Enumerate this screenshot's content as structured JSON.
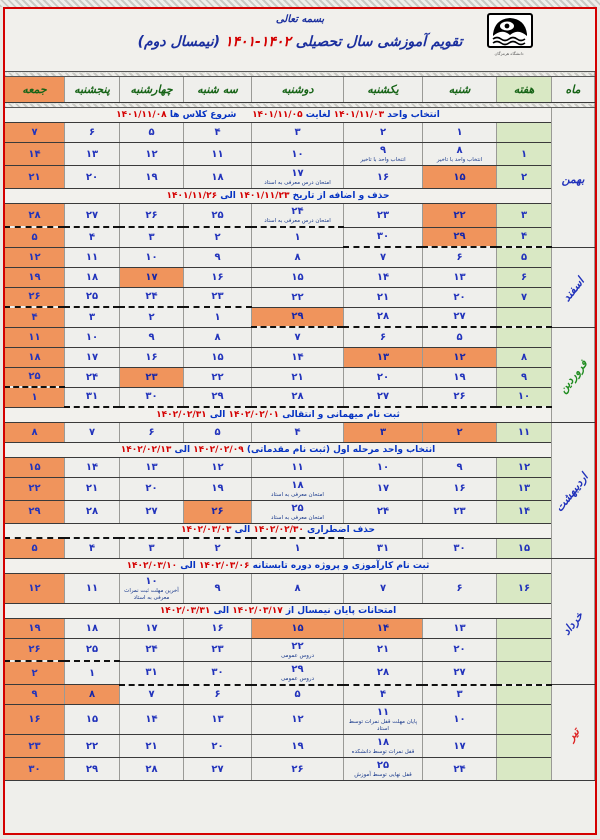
{
  "page": {
    "bismillah": "بسمه تعالی",
    "title": {
      "prefix": "تقویم آموزشی سال تحصیلی ",
      "years": "۱۴۰۲-۱۴۰۱",
      "suffix": " (نیمسال دوم)"
    },
    "logo_caption": "دانشگاه هرمزگان"
  },
  "colors": {
    "accent_red": "#d40000",
    "highlight_orange": "#f0945c",
    "week_green": "#d9e8c4",
    "date_blue": "#2233bb",
    "day_header_green": "#176417"
  },
  "calendar": {
    "column_headers": [
      "ماه",
      "هفته",
      "شنبه",
      "یکشنبه",
      "دوشنبه",
      "سه شنبه",
      "چهارشنبه",
      "پنجشنبه",
      "جمعه"
    ],
    "months": [
      {
        "name": "بهمن",
        "color": "#2233bb",
        "rotate": false
      },
      {
        "name": "اسفند",
        "color": "#2233bb",
        "rotate": true
      },
      {
        "name": "فروردین",
        "color": "#1f8c1f",
        "rotate": true
      },
      {
        "name": "اردیبهشت",
        "color": "#2233bb",
        "rotate": true
      },
      {
        "name": "خرداد",
        "color": "#2233bb",
        "rotate": true
      },
      {
        "name": "تیر",
        "color": "#dd2222",
        "rotate": true
      }
    ],
    "rows": [
      {
        "type": "note",
        "month": 0,
        "span": 7,
        "parts": [
          {
            "text": "انتخاب واحد ",
            "red": false
          },
          {
            "text": "۱۴۰۱/۱۱/۰۳",
            "red": true
          },
          {
            "text": " لغایت ",
            "red": false
          },
          {
            "text": "۱۴۰۱/۱۱/۰۵",
            "red": true
          },
          {
            "text": "     شروع کلاس ها ",
            "red": false
          },
          {
            "text": "۱۴۰۱/۱۱/۰۸",
            "red": true
          }
        ]
      },
      {
        "type": "days",
        "week": "",
        "cells": [
          {
            "d": "۱"
          },
          {
            "d": "۲"
          },
          {
            "d": "۳"
          },
          {
            "d": "۴"
          },
          {
            "d": "۵"
          },
          {
            "d": "۶"
          },
          {
            "d": "۷"
          }
        ]
      },
      {
        "type": "days",
        "week": "۱",
        "cells": [
          {
            "d": "۸",
            "sub": "انتخاب واحد با تاخیر"
          },
          {
            "d": "۹",
            "sub": "انتخاب واحد با تاخیر"
          },
          {
            "d": "۱۰"
          },
          {
            "d": "۱۱"
          },
          {
            "d": "۱۲"
          },
          {
            "d": "۱۳"
          },
          {
            "d": "۱۴"
          }
        ]
      },
      {
        "type": "days",
        "week": "۲",
        "cells": [
          {
            "d": "۱۵",
            "hl": true
          },
          {
            "d": "۱۶"
          },
          {
            "d": "۱۷",
            "sub": "امتحان درس معرفی به استاد"
          },
          {
            "d": "۱۸"
          },
          {
            "d": "۱۹"
          },
          {
            "d": "۲۰"
          },
          {
            "d": "۲۱"
          }
        ]
      },
      {
        "type": "note",
        "parts": [
          {
            "text": "حذف و اضافه از تاریخ ",
            "red": false
          },
          {
            "text": "۱۴۰۱/۱۱/۲۳",
            "red": true
          },
          {
            "text": " الی ",
            "red": false
          },
          {
            "text": "۱۴۰۱/۱۱/۲۶",
            "red": true
          }
        ]
      },
      {
        "type": "days",
        "week": "۳",
        "cells": [
          {
            "d": "۲۲",
            "hl": true
          },
          {
            "d": "۲۳"
          },
          {
            "d": "۲۴",
            "sub": "امتحان درس معرفی به استاد"
          },
          {
            "d": "۲۵"
          },
          {
            "d": "۲۶"
          },
          {
            "d": "۲۷"
          },
          {
            "d": "۲۸"
          }
        ]
      },
      {
        "type": "days",
        "week": "۴",
        "week_db": true,
        "cells": [
          {
            "d": "۲۹",
            "hl": true,
            "db": true
          },
          {
            "d": "۳۰",
            "db": true
          },
          {
            "d": "۱",
            "dt": true
          },
          {
            "d": "۲",
            "dt": true
          },
          {
            "d": "۳",
            "dt": true
          },
          {
            "d": "۴",
            "dt": true
          },
          {
            "d": "۵",
            "dt": true
          }
        ]
      },
      {
        "type": "days",
        "month": 1,
        "span": 4,
        "week": "۵",
        "cells": [
          {
            "d": "۶"
          },
          {
            "d": "۷"
          },
          {
            "d": "۸"
          },
          {
            "d": "۹"
          },
          {
            "d": "۱۰"
          },
          {
            "d": "۱۱"
          },
          {
            "d": "۱۲"
          }
        ]
      },
      {
        "type": "days",
        "week": "۶",
        "cells": [
          {
            "d": "۱۳"
          },
          {
            "d": "۱۴"
          },
          {
            "d": "۱۵"
          },
          {
            "d": "۱۶"
          },
          {
            "d": "۱۷",
            "hl": true
          },
          {
            "d": "۱۸"
          },
          {
            "d": "۱۹"
          }
        ]
      },
      {
        "type": "days",
        "week": "۷",
        "cells": [
          {
            "d": "۲۰"
          },
          {
            "d": "۲۱"
          },
          {
            "d": "۲۲"
          },
          {
            "d": "۲۳"
          },
          {
            "d": "۲۴"
          },
          {
            "d": "۲۵"
          },
          {
            "d": "۲۶"
          }
        ]
      },
      {
        "type": "days",
        "week": "",
        "week_db": true,
        "cells": [
          {
            "d": "۲۷",
            "db": true
          },
          {
            "d": "۲۸",
            "db": true
          },
          {
            "d": "۲۹",
            "hl": true,
            "db": true
          },
          {
            "d": "۱",
            "dt": true
          },
          {
            "d": "۲",
            "dt": true
          },
          {
            "d": "۳",
            "dt": true
          },
          {
            "d": "۴",
            "dt": true
          }
        ]
      },
      {
        "type": "days",
        "month": 2,
        "span": 5,
        "week": "",
        "cells": [
          {
            "d": "۵"
          },
          {
            "d": "۶"
          },
          {
            "d": "۷"
          },
          {
            "d": "۸"
          },
          {
            "d": "۹"
          },
          {
            "d": "۱۰"
          },
          {
            "d": "۱۱"
          }
        ]
      },
      {
        "type": "days",
        "week": "۸",
        "cells": [
          {
            "d": "۱۲",
            "hl": true
          },
          {
            "d": "۱۳",
            "hl": true
          },
          {
            "d": "۱۴"
          },
          {
            "d": "۱۵"
          },
          {
            "d": "۱۶"
          },
          {
            "d": "۱۷"
          },
          {
            "d": "۱۸"
          }
        ]
      },
      {
        "type": "days",
        "week": "۹",
        "cells": [
          {
            "d": "۱۹"
          },
          {
            "d": "۲۰"
          },
          {
            "d": "۲۱"
          },
          {
            "d": "۲۲"
          },
          {
            "d": "۲۳",
            "hl": true
          },
          {
            "d": "۲۴"
          },
          {
            "d": "۲۵"
          }
        ]
      },
      {
        "type": "days",
        "week": "۱۰",
        "week_db": true,
        "cells": [
          {
            "d": "۲۶",
            "db": true
          },
          {
            "d": "۲۷",
            "db": true
          },
          {
            "d": "۲۸",
            "db": true
          },
          {
            "d": "۲۹",
            "db": true
          },
          {
            "d": "۳۰",
            "db": true
          },
          {
            "d": "۳۱",
            "db": true
          },
          {
            "d": "۱",
            "dt": true
          }
        ]
      },
      {
        "type": "note",
        "parts": [
          {
            "text": "ثبت نام میهمانی و انتقالی ",
            "red": false
          },
          {
            "text": "۱۴۰۲/۰۲/۰۱",
            "red": true
          },
          {
            "text": " الی ",
            "red": false
          },
          {
            "text": "۱۴۰۲/۰۲/۳۱",
            "red": true
          }
        ]
      },
      {
        "type": "days",
        "month": 3,
        "span": 7,
        "week": "۱۱",
        "cells": [
          {
            "d": "۲",
            "hl": true
          },
          {
            "d": "۳",
            "hl": true
          },
          {
            "d": "۴"
          },
          {
            "d": "۵"
          },
          {
            "d": "۶"
          },
          {
            "d": "۷"
          },
          {
            "d": "۸"
          }
        ]
      },
      {
        "type": "note",
        "parts": [
          {
            "text": "انتخاب واحد مرحله اول (ثبت نام مقدماتی) ",
            "red": false
          },
          {
            "text": "۱۴۰۲/۰۲/۰۹",
            "red": true
          },
          {
            "text": " الی ",
            "red": false
          },
          {
            "text": "۱۴۰۲/۰۲/۱۳",
            "red": true
          }
        ]
      },
      {
        "type": "days",
        "week": "۱۲",
        "cells": [
          {
            "d": "۹"
          },
          {
            "d": "۱۰"
          },
          {
            "d": "۱۱"
          },
          {
            "d": "۱۲"
          },
          {
            "d": "۱۳"
          },
          {
            "d": "۱۴"
          },
          {
            "d": "۱۵"
          }
        ]
      },
      {
        "type": "days",
        "week": "۱۳",
        "cells": [
          {
            "d": "۱۶"
          },
          {
            "d": "۱۷"
          },
          {
            "d": "۱۸",
            "sub": "امتحان معرفی به استاد"
          },
          {
            "d": "۱۹"
          },
          {
            "d": "۲۰"
          },
          {
            "d": "۲۱"
          },
          {
            "d": "۲۲"
          }
        ]
      },
      {
        "type": "days",
        "week": "۱۴",
        "cells": [
          {
            "d": "۲۳"
          },
          {
            "d": "۲۴"
          },
          {
            "d": "۲۵",
            "sub": "امتحان معرفی به استاد"
          },
          {
            "d": "۲۶",
            "hl": true
          },
          {
            "d": "۲۷"
          },
          {
            "d": "۲۸"
          },
          {
            "d": "۲۹"
          }
        ]
      },
      {
        "type": "note",
        "parts": [
          {
            "text": "حذف اضطراری ",
            "red": false
          },
          {
            "text": "۱۴۰۲/۰۲/۳۰",
            "red": true
          },
          {
            "text": " الی ",
            "red": false
          },
          {
            "text": "۱۴۰۲/۰۳/۰۳",
            "red": true
          }
        ]
      },
      {
        "type": "days",
        "week": "۱۵",
        "cells": [
          {
            "d": "۳۰"
          },
          {
            "d": "۳۱"
          },
          {
            "d": "۱",
            "dt": true
          },
          {
            "d": "۲",
            "dt": true
          },
          {
            "d": "۳",
            "dt": true
          },
          {
            "d": "۴",
            "dt": true
          },
          {
            "d": "۵",
            "dt": true
          }
        ]
      },
      {
        "type": "note",
        "month": 4,
        "span": 6,
        "parts": [
          {
            "text": "ثبت نام کارآموزی و پروژه دوره تابستانه ",
            "red": false
          },
          {
            "text": "۱۴۰۲/۰۳/۰۶",
            "red": true
          },
          {
            "text": " الی ",
            "red": false
          },
          {
            "text": "۱۴۰۲/۰۳/۱۰",
            "red": true
          }
        ]
      },
      {
        "type": "days",
        "week": "۱۶",
        "cells": [
          {
            "d": "۶"
          },
          {
            "d": "۷"
          },
          {
            "d": "۸"
          },
          {
            "d": "۹"
          },
          {
            "d": "۱۰",
            "sub": "آخرین مهلت ثبت نمرات معرفی به استاد"
          },
          {
            "d": "۱۱"
          },
          {
            "d": "۱۲"
          }
        ]
      },
      {
        "type": "note",
        "parts": [
          {
            "text": "امتحانات پایان نیمسال از ",
            "red": false
          },
          {
            "text": "۱۴۰۲/۰۳/۱۷",
            "red": true
          },
          {
            "text": " الی ",
            "red": false
          },
          {
            "text": "۱۴۰۲/۰۳/۳۱",
            "red": true
          }
        ]
      },
      {
        "type": "days",
        "week": "",
        "cells": [
          {
            "d": "۱۳"
          },
          {
            "d": "۱۴",
            "hl": true
          },
          {
            "d": "۱۵",
            "hl": true
          },
          {
            "d": "۱۶"
          },
          {
            "d": "۱۷"
          },
          {
            "d": "۱۸"
          },
          {
            "d": "۱۹"
          }
        ]
      },
      {
        "type": "days",
        "week": "",
        "cells": [
          {
            "d": "۲۰"
          },
          {
            "d": "۲۱"
          },
          {
            "d": "۲۲",
            "sub": "دروس عمومی"
          },
          {
            "d": "۲۳"
          },
          {
            "d": "۲۴"
          },
          {
            "d": "۲۵"
          },
          {
            "d": "۲۶"
          }
        ]
      },
      {
        "type": "days",
        "week": "",
        "week_db": true,
        "cells": [
          {
            "d": "۲۷",
            "db": true
          },
          {
            "d": "۲۸",
            "db": true
          },
          {
            "d": "۲۹",
            "sub": "دروس عمومی",
            "db": true
          },
          {
            "d": "۳۰",
            "db": true
          },
          {
            "d": "۳۱",
            "db": true
          },
          {
            "d": "۱",
            "dt": true
          },
          {
            "d": "۲",
            "dt": true
          }
        ]
      },
      {
        "type": "days",
        "month": 5,
        "span": 4,
        "week": "",
        "cells": [
          {
            "d": "۳"
          },
          {
            "d": "۴"
          },
          {
            "d": "۵"
          },
          {
            "d": "۶"
          },
          {
            "d": "۷"
          },
          {
            "d": "۸",
            "hl": true
          },
          {
            "d": "۹"
          }
        ]
      },
      {
        "type": "days",
        "week": "",
        "cells": [
          {
            "d": "۱۰"
          },
          {
            "d": "۱۱",
            "sub": "پایان مهلت قفل نمرات توسط استاد"
          },
          {
            "d": "۱۲"
          },
          {
            "d": "۱۳"
          },
          {
            "d": "۱۴"
          },
          {
            "d": "۱۵"
          },
          {
            "d": "۱۶"
          }
        ]
      },
      {
        "type": "days",
        "week": "",
        "cells": [
          {
            "d": "۱۷"
          },
          {
            "d": "۱۸",
            "sub": "قفل نمرات توسط دانشکده"
          },
          {
            "d": "۱۹"
          },
          {
            "d": "۲۰"
          },
          {
            "d": "۲۱"
          },
          {
            "d": "۲۲"
          },
          {
            "d": "۲۳"
          }
        ]
      },
      {
        "type": "days",
        "week": "",
        "cells": [
          {
            "d": "۲۴"
          },
          {
            "d": "۲۵",
            "sub": "قفل نهایی توسط آموزش"
          },
          {
            "d": "۲۶"
          },
          {
            "d": "۲۷"
          },
          {
            "d": "۲۸"
          },
          {
            "d": "۲۹"
          },
          {
            "d": "۳۰"
          }
        ]
      }
    ]
  }
}
